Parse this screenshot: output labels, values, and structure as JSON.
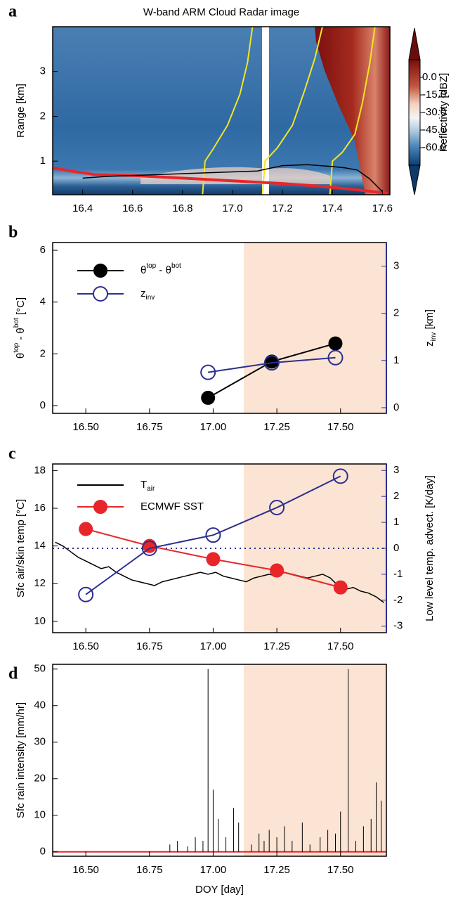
{
  "chart_data": [
    {
      "type": "line",
      "panel_label": "a",
      "title": "W-band ARM Cloud Radar image",
      "ylabel": "Range [km]",
      "xlim": [
        16.28,
        17.63
      ],
      "ylim": [
        0.25,
        4.0
      ],
      "xticks": [
        16.4,
        16.6,
        16.8,
        {
          "value": 17.0,
          "label": "17.0"
        },
        17.2,
        17.4,
        17.6
      ],
      "yticks": [
        1,
        2,
        3
      ],
      "colorbar": {
        "label": "Reflectivity [dBZ]",
        "lim": [
          -75,
          15
        ],
        "ticks": [
          {
            "value": 0,
            "label": "0.0"
          },
          {
            "value": -15,
            "label": "-15.0"
          },
          {
            "value": -30,
            "label": "-30.0"
          },
          {
            "value": -45,
            "label": "-45.0"
          },
          {
            "value": -60,
            "label": "-60.0"
          }
        ]
      },
      "series": [
        {
          "color": "#f2e524",
          "width": 2,
          "x": [
            16.88,
            16.89,
            16.92,
            16.98,
            17.03,
            17.06,
            17.08
          ],
          "values": [
            0.25,
            1.0,
            1.25,
            1.8,
            2.5,
            3.2,
            4.0
          ]
        },
        {
          "color": "#f2e524",
          "width": 2,
          "x": [
            17.12,
            17.13,
            17.18,
            17.24,
            17.29,
            17.33,
            17.36
          ],
          "values": [
            0.25,
            1.0,
            1.3,
            1.8,
            2.6,
            3.3,
            4.0
          ]
        },
        {
          "color": "#f2e524",
          "width": 2,
          "x": [
            17.39,
            17.4,
            17.44,
            17.49,
            17.52,
            17.55,
            17.57
          ],
          "values": [
            0.25,
            1.0,
            1.2,
            1.6,
            2.3,
            3.2,
            4.0
          ]
        },
        {
          "color": "#e8262a",
          "width": 4,
          "x": [
            16.28,
            16.35,
            16.45,
            16.6,
            16.8,
            17.0,
            17.2,
            17.35,
            17.5,
            17.62
          ],
          "values": [
            0.85,
            0.78,
            0.7,
            0.68,
            0.62,
            0.56,
            0.5,
            0.44,
            0.36,
            0.28
          ]
        },
        {
          "color": "#000000",
          "width": 1.5,
          "x": [
            16.4,
            16.5,
            16.6,
            16.7,
            16.8,
            16.9,
            17.0,
            17.1,
            17.2,
            17.3,
            17.4,
            17.45,
            17.5,
            17.55,
            17.6
          ],
          "values": [
            0.62,
            0.66,
            0.68,
            0.7,
            0.72,
            0.74,
            0.76,
            0.78,
            0.9,
            0.92,
            0.88,
            0.85,
            0.8,
            0.6,
            0.32
          ]
        }
      ]
    },
    {
      "type": "line",
      "panel_label": "b",
      "ylabel": [
        "θ",
        "top",
        " - θ",
        "bot",
        " [°C]"
      ],
      "y2label": [
        "z",
        "inv",
        " [km]"
      ],
      "xlim": [
        16.37,
        17.68
      ],
      "ylim": [
        -0.3,
        6.3
      ],
      "y2lim": [
        -0.12,
        3.5
      ],
      "xticks": [
        {
          "value": 16.5,
          "label": "16.50"
        },
        {
          "value": 16.75,
          "label": "16.75"
        },
        {
          "value": 17.0,
          "label": "17.00"
        },
        {
          "value": 17.25,
          "label": "17.25"
        },
        {
          "value": 17.5,
          "label": "17.50"
        }
      ],
      "yticks": [
        0,
        2,
        4,
        6
      ],
      "y2ticks": [
        0,
        1,
        2,
        3
      ],
      "y2_color": "#2b2f8f",
      "shaded_x": [
        17.12,
        17.68
      ],
      "shade_color": "#fbe4d3",
      "series": [
        {
          "name": [
            "θ",
            "top",
            " - θ",
            "bot"
          ],
          "color": "#000000",
          "marker": "filled",
          "x": [
            16.98,
            17.23,
            17.48
          ],
          "values": [
            0.3,
            1.7,
            2.4
          ]
        },
        {
          "name": [
            "z",
            "inv"
          ],
          "color": "#2b2f8f",
          "marker": "open",
          "axis": "y2",
          "x": [
            16.98,
            17.23,
            17.48
          ],
          "values": [
            0.75,
            0.95,
            1.06
          ]
        }
      ]
    },
    {
      "type": "line",
      "panel_label": "c",
      "ylabel": "Sfc air/skin temp [°C]",
      "y2label": "Low level temp. advect. [K/day]",
      "xlim": [
        16.37,
        17.68
      ],
      "ylim": [
        9.4,
        18.35
      ],
      "y2lim": [
        -3.25,
        3.25
      ],
      "xticks": [
        {
          "value": 16.5,
          "label": "16.50"
        },
        {
          "value": 16.75,
          "label": "16.75"
        },
        {
          "value": 17.0,
          "label": "17.00"
        },
        {
          "value": 17.25,
          "label": "17.25"
        },
        {
          "value": 17.5,
          "label": "17.50"
        }
      ],
      "yticks": [
        10,
        12,
        14,
        16,
        18
      ],
      "y2ticks": [
        -3,
        -2,
        -1,
        0,
        1,
        2,
        3
      ],
      "y2_color": "#2b2f8f",
      "hline_y2": 0,
      "shaded_x": [
        17.12,
        17.68
      ],
      "shade_color": "#fbe4d3",
      "series": [
        {
          "name": [
            "T",
            "air"
          ],
          "color": "#000000",
          "width": 1.5,
          "x": [
            16.38,
            16.41,
            16.44,
            16.47,
            16.5,
            16.53,
            16.56,
            16.59,
            16.62,
            16.65,
            16.68,
            16.71,
            16.74,
            16.77,
            16.8,
            16.83,
            16.86,
            16.89,
            16.92,
            16.95,
            16.98,
            17.01,
            17.04,
            17.07,
            17.1,
            17.13,
            17.16,
            17.19,
            17.22,
            17.25,
            17.28,
            17.31,
            17.34,
            17.37,
            17.4,
            17.43,
            17.46,
            17.49,
            17.52,
            17.55,
            17.58,
            17.61,
            17.64,
            17.67
          ],
          "values": [
            14.2,
            14.0,
            13.7,
            13.4,
            13.2,
            13.0,
            12.8,
            12.9,
            12.6,
            12.4,
            12.2,
            12.1,
            12.0,
            11.9,
            12.1,
            12.2,
            12.3,
            12.4,
            12.5,
            12.6,
            12.5,
            12.6,
            12.4,
            12.3,
            12.2,
            12.1,
            12.3,
            12.4,
            12.5,
            12.4,
            12.6,
            12.5,
            12.4,
            12.3,
            12.4,
            12.5,
            12.3,
            11.9,
            11.7,
            11.8,
            11.6,
            11.5,
            11.3,
            11.0
          ]
        },
        {
          "name": [
            "ECMWF SST"
          ],
          "color": "#e8262a",
          "marker": "filled",
          "x": [
            16.5,
            16.75,
            17.0,
            17.25,
            17.5
          ],
          "values": [
            14.9,
            14.0,
            13.3,
            12.7,
            11.8
          ]
        },
        {
          "color": "#2b2f8f",
          "marker": "open",
          "axis": "y2",
          "x": [
            16.5,
            16.75,
            17.0,
            17.25,
            17.5
          ],
          "values": [
            -1.78,
            0.0,
            0.51,
            1.57,
            2.78
          ]
        }
      ]
    },
    {
      "type": "bar",
      "panel_label": "d",
      "ylabel": "Sfc rain intensity [mm/hr]",
      "xlabel": "DOY [day]",
      "xlim": [
        16.37,
        17.68
      ],
      "ylim": [
        -1.2,
        51.3
      ],
      "xticks": [
        {
          "value": 16.5,
          "label": "16.50"
        },
        {
          "value": 16.75,
          "label": "16.75"
        },
        {
          "value": 17.0,
          "label": "17.00"
        },
        {
          "value": 17.25,
          "label": "17.25"
        },
        {
          "value": 17.5,
          "label": "17.50"
        }
      ],
      "yticks": [
        0,
        10,
        20,
        30,
        40,
        50
      ],
      "shaded_x": [
        17.12,
        17.68
      ],
      "shade_color": "#fbe4d3",
      "color": "#000000",
      "x": [
        16.83,
        16.86,
        16.9,
        16.93,
        16.96,
        16.98,
        17.0,
        17.02,
        17.05,
        17.08,
        17.1,
        17.15,
        17.18,
        17.2,
        17.22,
        17.25,
        17.28,
        17.31,
        17.35,
        17.38,
        17.42,
        17.45,
        17.48,
        17.5,
        17.53,
        17.56,
        17.59,
        17.62,
        17.64,
        17.66
      ],
      "values": [
        2,
        3,
        1.5,
        4,
        3,
        50,
        17,
        9,
        4,
        12,
        8,
        2,
        5,
        3,
        6,
        4,
        7,
        3,
        8,
        2,
        4,
        6,
        5,
        11,
        50,
        3,
        7,
        9,
        19,
        14
      ]
    }
  ]
}
